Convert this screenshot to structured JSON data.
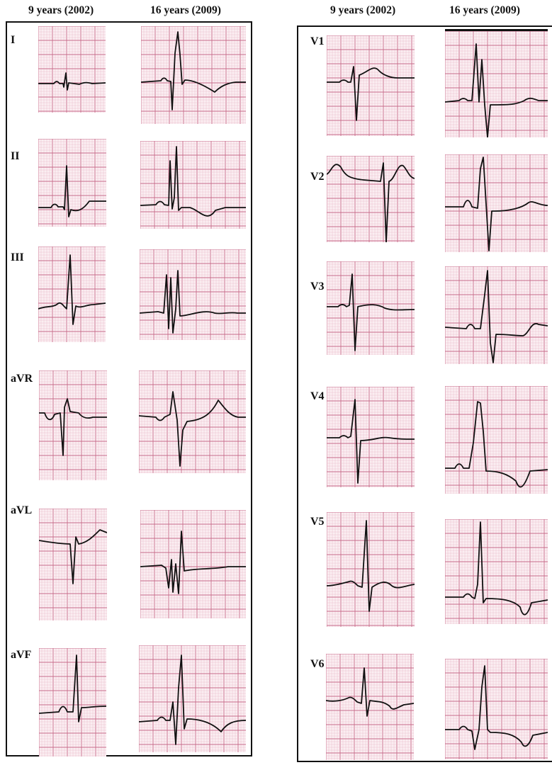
{
  "headers": {
    "left_col1": "9 years (2002)",
    "left_col2": "16 years (2009)",
    "right_col1": "9 years (2002)",
    "right_col2": "16 years (2009)"
  },
  "leads": {
    "I": "I",
    "II": "II",
    "III": "III",
    "aVR": "aVR",
    "aVL": "aVL",
    "aVF": "aVF",
    "V1": "V1",
    "V2": "V2",
    "V3": "V3",
    "V4": "V4",
    "V5": "V5",
    "V6": "V6"
  },
  "colors": {
    "paper": "#fbeef2",
    "grid_minor": "#e8b7c6",
    "grid_major": "#c76b8a",
    "trace": "#111111",
    "frame": "#111111"
  },
  "waveform_features": {
    "I": {
      "2002": "small biphasic QRS",
      "2009": "tall R, deep S, inverted T"
    },
    "II": {
      "2002": "upright R",
      "2009": "tall R, inverted T"
    },
    "III": {
      "2002": "upright R",
      "2009": "fragmented QRS"
    },
    "aVR": {
      "2002": "negative QRS",
      "2009": "negative QRS, upright T"
    },
    "aVL": {
      "2002": "negative QRS",
      "2009": "biphasic QRS"
    },
    "aVF": {
      "2002": "upright R",
      "2009": "tall R, inverted T"
    },
    "V1": {
      "2002": "rS",
      "2009": "tall R"
    },
    "V2": {
      "2002": "rS, upright T",
      "2009": "tall R, deep S"
    },
    "V3": {
      "2002": "RS",
      "2009": "tall R, deep S"
    },
    "V4": {
      "2002": "RS",
      "2009": "tall R, inverted T"
    },
    "V5": {
      "2002": "Rs",
      "2009": "tall R, inverted T"
    },
    "V6": {
      "2002": "Rs",
      "2009": "tall R, inverted T"
    }
  }
}
